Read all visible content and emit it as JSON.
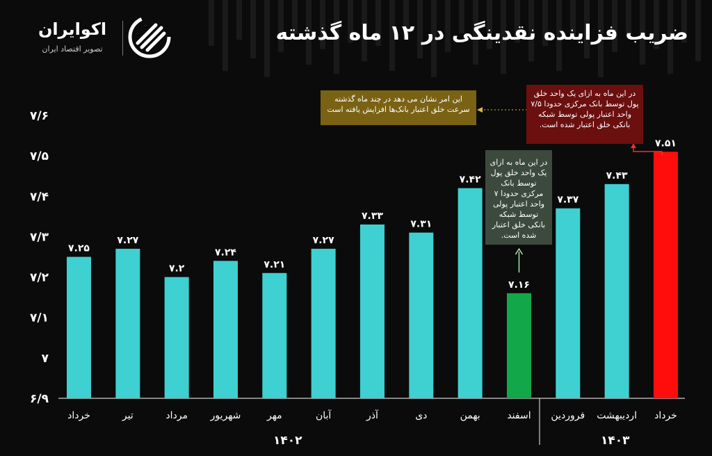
{
  "title": "ضریب فزاینده نقدینگی در ۱۲ ماه گذشته",
  "brand": {
    "name": "اکوایران",
    "tagline": "تصویر اقتصاد ایران"
  },
  "annotations": {
    "gold": "این امر نشان می دهد در چند ماه گذشته سرعت خلق اعتبار بانک‌ها افزایش یافته است",
    "red": "در این ماه به ازای یک واحد خلق پول توسط بانک مرکزی حدودا ۷/۵ واحد اعتبار پولی توسط شبکه بانکی خلق اعتبار شده است.",
    "gray": "در این ماه به ازای یک واحد خلق پول توسط بانک مرکزی حدودا ۷ واحد اعتبار پولی توسط شبکه بانکی خلق اعتبار شده است."
  },
  "years": {
    "first": "۱۴۰۲",
    "second": "۱۴۰۳"
  },
  "colors": {
    "default_bar": "#3fd0d2",
    "highlight_min": "#12a84a",
    "highlight_max": "#ff0d0d",
    "gold_box": "#7a6214",
    "red_box": "#6b0f0f",
    "gray_box": "#3c4a3e"
  },
  "chart_data": {
    "type": "bar",
    "title": "ضریب فزاینده نقدینگی در ۱۲ ماه گذشته",
    "categories": [
      "خرداد",
      "تیر",
      "مرداد",
      "شهریور",
      "مهر",
      "آبان",
      "آذر",
      "دی",
      "بهمن",
      "اسفند",
      "فروردین",
      "اردیبهشت",
      "خرداد"
    ],
    "values": [
      7.25,
      7.27,
      7.2,
      7.24,
      7.21,
      7.27,
      7.33,
      7.31,
      7.42,
      7.16,
      7.37,
      7.43,
      7.51
    ],
    "value_labels": [
      "۷.۲۵",
      "۷.۲۷",
      "۷.۲",
      "۷.۲۴",
      "۷.۲۱",
      "۷.۲۷",
      "۷.۳۳",
      "۷.۳۱",
      "۷.۴۲",
      "۷.۱۶",
      "۷.۳۷",
      "۷.۴۳",
      "۷.۵۱"
    ],
    "bar_colors": [
      "#3fd0d2",
      "#3fd0d2",
      "#3fd0d2",
      "#3fd0d2",
      "#3fd0d2",
      "#3fd0d2",
      "#3fd0d2",
      "#3fd0d2",
      "#3fd0d2",
      "#12a84a",
      "#3fd0d2",
      "#3fd0d2",
      "#ff0d0d"
    ],
    "y_ticks": [
      6.9,
      7.0,
      7.1,
      7.2,
      7.3,
      7.4,
      7.5,
      7.6
    ],
    "y_tick_labels": [
      "۶/۹",
      "۷",
      "۷/۱",
      "۷/۲",
      "۷/۳",
      "۷/۴",
      "۷/۵",
      "۷/۶"
    ],
    "ylim": [
      6.9,
      7.6
    ],
    "xlabel": "",
    "ylabel": "",
    "grid": false
  }
}
